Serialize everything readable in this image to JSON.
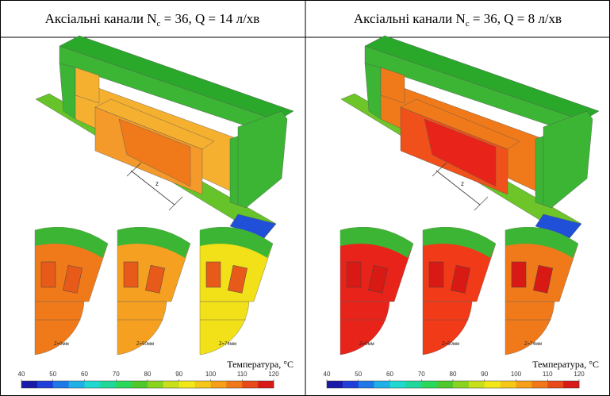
{
  "panels": [
    {
      "header": {
        "before": "Аксіальні канали N",
        "sub": "c",
        "after": " = 36, Q = 14 л/хв"
      },
      "dimension_label": "z",
      "slices": [
        "Z=0мм",
        "Z=50мм",
        "Z=74мм"
      ],
      "colorbar": {
        "label": "Температура, °C",
        "range": [
          40,
          120
        ],
        "ticks": [
          40,
          50,
          60,
          70,
          80,
          90,
          100,
          110,
          120
        ]
      }
    },
    {
      "header": {
        "before": "Аксіальні канали N",
        "sub": "c",
        "after": " = 36, Q = 8 л/хв"
      },
      "dimension_label": "z",
      "slices": [
        "Z=0мм",
        "Z=50мм",
        "Z=74мм"
      ],
      "colorbar": {
        "label": "Температура, °C",
        "range": [
          40,
          120
        ],
        "ticks": [
          40,
          50,
          60,
          70,
          80,
          90,
          100,
          110,
          120
        ]
      }
    }
  ]
}
